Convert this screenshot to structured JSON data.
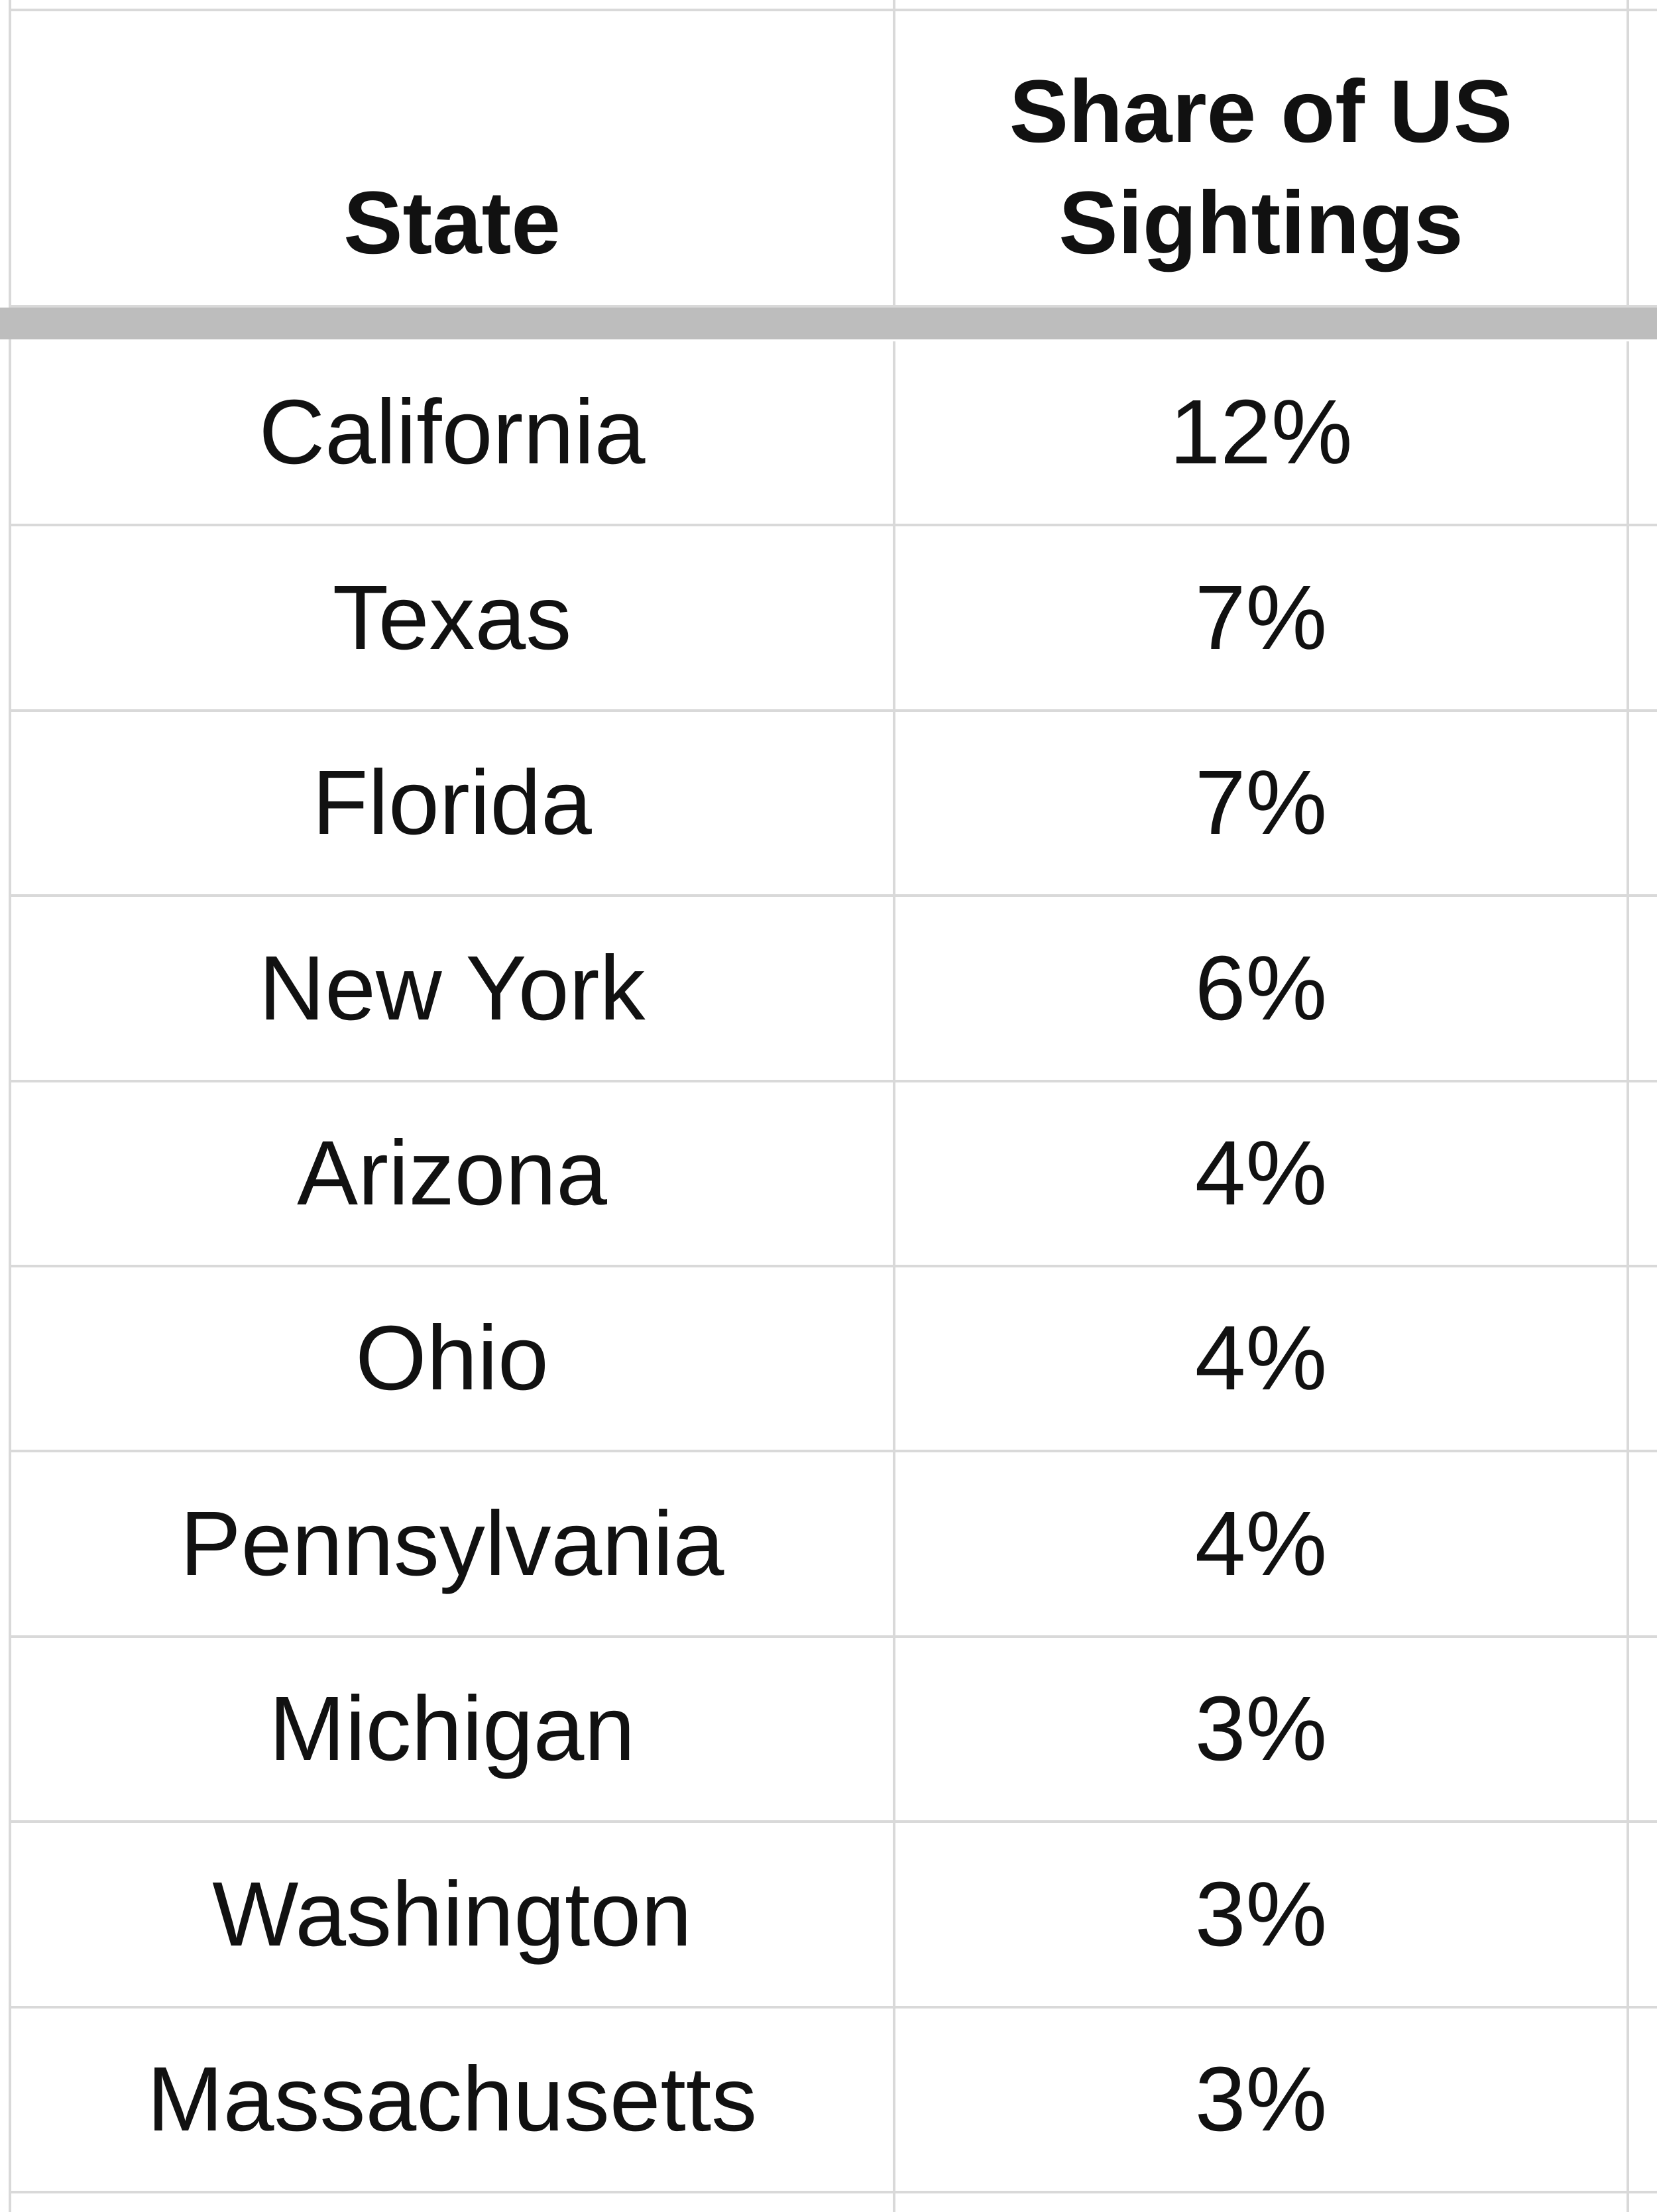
{
  "table": {
    "header": [
      "State",
      "Share of US Sightings"
    ],
    "rows": [
      [
        "California",
        "12%"
      ],
      [
        "Texas",
        "7%"
      ],
      [
        "Florida",
        "7%"
      ],
      [
        "New York",
        "6%"
      ],
      [
        "Arizona",
        "4%"
      ],
      [
        "Ohio",
        "4%"
      ],
      [
        "Pennsylvania",
        "4%"
      ],
      [
        "Michigan",
        "3%"
      ],
      [
        "Washington",
        "3%"
      ],
      [
        "Massachusetts",
        "3%"
      ]
    ]
  }
}
